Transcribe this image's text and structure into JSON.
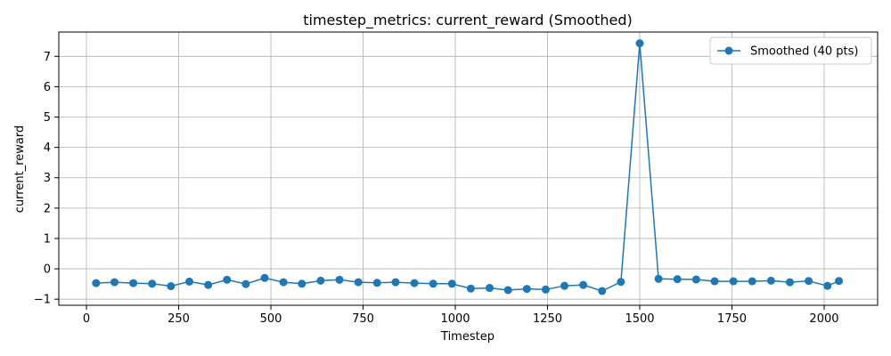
{
  "chart_data": {
    "type": "line",
    "title": "timestep_metrics: current_reward (Smoothed)",
    "xlabel": "Timestep",
    "ylabel": "current_reward",
    "xlim": [
      -75,
      2145
    ],
    "ylim": [
      -1.2,
      7.8
    ],
    "xticks": [
      0,
      250,
      500,
      750,
      1000,
      1250,
      1500,
      1750,
      2000
    ],
    "yticks": [
      -1,
      0,
      1,
      2,
      3,
      4,
      5,
      6,
      7
    ],
    "grid": true,
    "legend": {
      "position": "top-right"
    },
    "color": "#1f77b4",
    "series": [
      {
        "name": "Smoothed (40 pts)",
        "x": [
          26,
          76,
          127,
          178,
          229,
          279,
          330,
          381,
          432,
          483,
          534,
          584,
          635,
          686,
          737,
          788,
          838,
          889,
          940,
          991,
          1042,
          1093,
          1143,
          1194,
          1245,
          1296,
          1347,
          1398,
          1449,
          1500,
          1551,
          1602,
          1653,
          1703,
          1754,
          1805,
          1856,
          1907,
          1958,
          2009,
          2040
        ],
        "values": [
          -0.47,
          -0.44,
          -0.47,
          -0.49,
          -0.57,
          -0.42,
          -0.53,
          -0.36,
          -0.5,
          -0.3,
          -0.44,
          -0.49,
          -0.39,
          -0.36,
          -0.44,
          -0.46,
          -0.44,
          -0.47,
          -0.49,
          -0.49,
          -0.65,
          -0.63,
          -0.7,
          -0.66,
          -0.68,
          -0.56,
          -0.53,
          -0.73,
          -0.43,
          7.43,
          -0.33,
          -0.34,
          -0.35,
          -0.41,
          -0.41,
          -0.41,
          -0.39,
          -0.44,
          -0.4,
          -0.56,
          -0.4
        ]
      }
    ]
  }
}
